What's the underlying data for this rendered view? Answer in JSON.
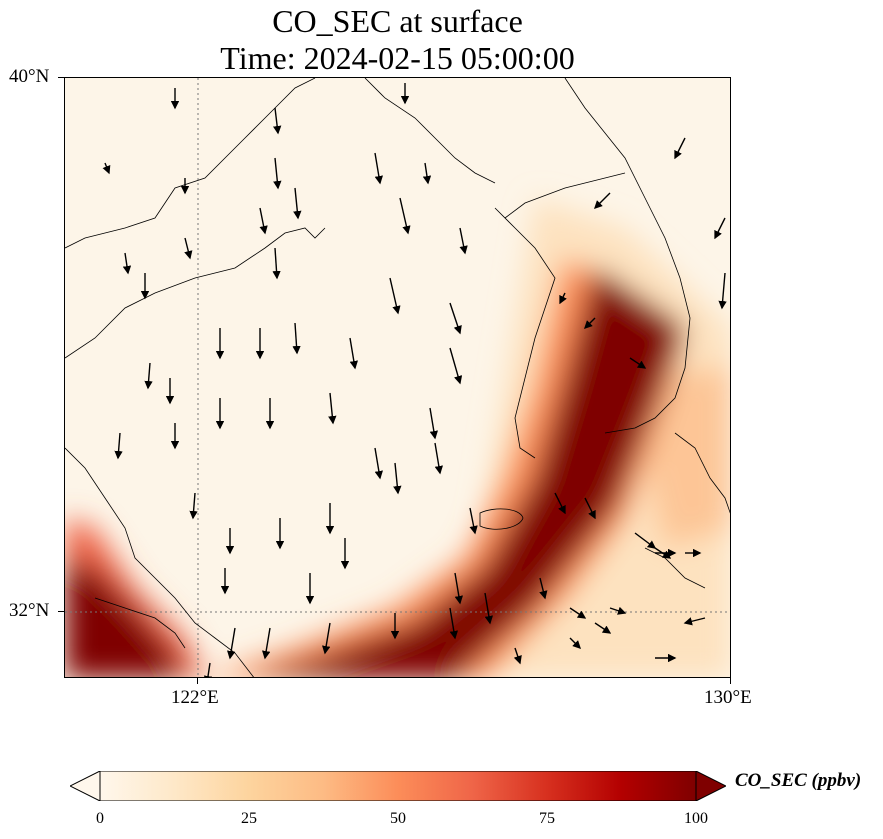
{
  "title": {
    "line1": "CO_SEC at surface",
    "line2": "Time: 2024-02-15 05:00:00"
  },
  "axes": {
    "lat_labels": [
      "40°N",
      "32°N"
    ],
    "lon_labels": [
      "122°E",
      "130°E"
    ]
  },
  "colorbar": {
    "label": "CO_SEC (ppbv)",
    "ticks": [
      "0",
      "25",
      "50",
      "75",
      "100"
    ],
    "min": 0,
    "max": 100,
    "extend": "both",
    "colormap": "OrRd",
    "colors": [
      "#fff7ec",
      "#fee8c8",
      "#fdd49e",
      "#fdbb84",
      "#fc8d59",
      "#ef6548",
      "#d7301f",
      "#b30000",
      "#7f0000"
    ]
  },
  "chart_data": {
    "type": "heatmap",
    "title": "CO_SEC at surface",
    "subtitle": "Time: 2024-02-15 05:00:00",
    "xlim": [
      120,
      130
    ],
    "ylim": [
      31,
      40
    ],
    "x_ticks": [
      122,
      130
    ],
    "y_ticks": [
      32,
      40
    ],
    "gridlines": "dotted at 122°E and 32°N",
    "plume_description_values_ppbv": {
      "background": 0,
      "band_core": 100,
      "band_edge": 40
    },
    "wind_vectors": "predominantly southward (northerly winds) over the Yellow Sea, eastward over southern Japan waters"
  }
}
